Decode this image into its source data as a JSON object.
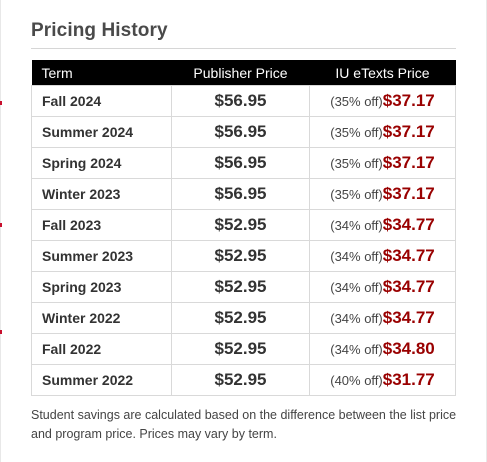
{
  "heading": "Pricing History",
  "table": {
    "headers": {
      "term": "Term",
      "publisher": "Publisher Price",
      "iu": "IU eTexts Price"
    },
    "rows": [
      {
        "term": "Fall 2024",
        "publisher": "$56.95",
        "discount": "(35% off)",
        "iu": "$37.17"
      },
      {
        "term": "Summer 2024",
        "publisher": "$56.95",
        "discount": "(35% off)",
        "iu": "$37.17"
      },
      {
        "term": "Spring 2024",
        "publisher": "$56.95",
        "discount": "(35% off)",
        "iu": "$37.17"
      },
      {
        "term": "Winter 2023",
        "publisher": "$56.95",
        "discount": "(35% off)",
        "iu": "$37.17"
      },
      {
        "term": "Fall 2023",
        "publisher": "$52.95",
        "discount": "(34% off)",
        "iu": "$34.77"
      },
      {
        "term": "Summer 2023",
        "publisher": "$52.95",
        "discount": "(34% off)",
        "iu": "$34.77"
      },
      {
        "term": "Spring 2023",
        "publisher": "$52.95",
        "discount": "(34% off)",
        "iu": "$34.77"
      },
      {
        "term": "Winter 2022",
        "publisher": "$52.95",
        "discount": "(34% off)",
        "iu": "$34.77"
      },
      {
        "term": "Fall 2022",
        "publisher": "$52.95",
        "discount": "(34% off)",
        "iu": "$34.80"
      },
      {
        "term": "Summer 2022",
        "publisher": "$52.95",
        "discount": "(40% off)",
        "iu": "$31.77"
      }
    ]
  },
  "note": "Student savings are calculated based on the difference between the list price and program price. Prices may vary by term.",
  "colors": {
    "header_bg": "#000000",
    "iu_price": "#990000",
    "accent_red": "#c8102e"
  }
}
